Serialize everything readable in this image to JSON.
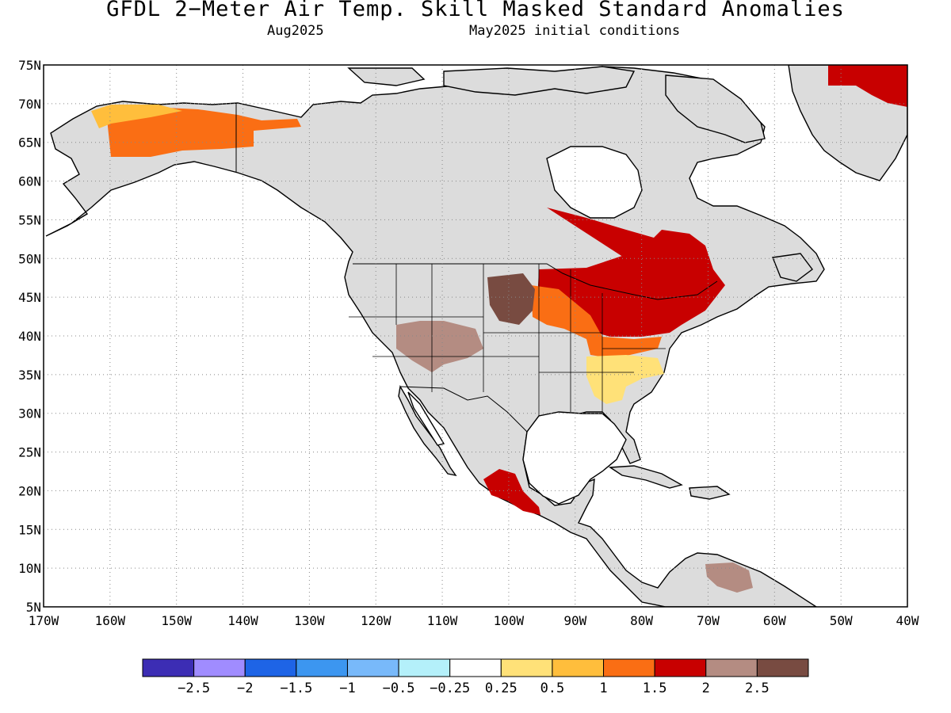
{
  "header": {
    "title": "GFDL 2−Meter Air Temp. Skill Masked Standard Anomalies",
    "valid_month": "Aug2025",
    "init_conditions": "May2025 initial conditions"
  },
  "map": {
    "lat_labels": [
      "75N",
      "70N",
      "65N",
      "60N",
      "55N",
      "50N",
      "45N",
      "40N",
      "35N",
      "30N",
      "25N",
      "20N",
      "15N",
      "10N",
      "5N"
    ],
    "lon_labels": [
      "170W",
      "160W",
      "150W",
      "140W",
      "130W",
      "120W",
      "110W",
      "100W",
      "90W",
      "80W",
      "70W",
      "60W",
      "50W",
      "40W"
    ],
    "lat_range": [
      5,
      75
    ],
    "lon_range": [
      -170,
      -40
    ],
    "masked_color": "#dcdcdc",
    "ocean_color": "#ffffff",
    "coast_color": "#000000"
  },
  "colorbar": {
    "colors": [
      "#3c2db4",
      "#a08cff",
      "#1e64e6",
      "#3c96f0",
      "#78b9fa",
      "#b4f0fa",
      "#ffffff",
      "#ffe178",
      "#ffbe3c",
      "#fa6e14",
      "#c80000",
      "#b48c82",
      "#784b41"
    ],
    "labels": [
      "−2.5",
      "−2",
      "−1.5",
      "−1",
      "−0.5",
      "−0.25",
      "0.25",
      "0.5",
      "1",
      "1.5",
      "2",
      "2.5"
    ]
  },
  "anomaly_regions": [
    {
      "name": "northern-alaska",
      "color": "#fa6e14"
    },
    {
      "name": "alaska-coast",
      "color": "#ffbe3c"
    },
    {
      "name": "hudson-bay-east",
      "color": "#c80000"
    },
    {
      "name": "great-lakes-northeast",
      "color": "#c80000"
    },
    {
      "name": "ohio-valley",
      "color": "#fa6e14"
    },
    {
      "name": "southeast-us",
      "color": "#ffe178"
    },
    {
      "name": "southern-mexico",
      "color": "#c80000"
    },
    {
      "name": "greenland",
      "color": "#c80000"
    },
    {
      "name": "northern-plains",
      "color": "#784b41"
    },
    {
      "name": "great-basin",
      "color": "#b48c82"
    },
    {
      "name": "venezuela",
      "color": "#b48c82"
    }
  ]
}
